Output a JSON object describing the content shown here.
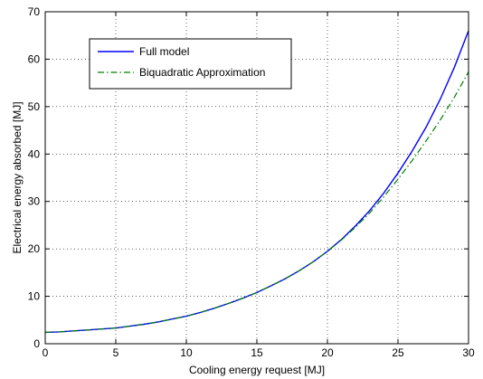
{
  "chart_data": {
    "type": "line",
    "title": "",
    "xlabel": "Cooling energy request [MJ]",
    "ylabel": "Electrical energy absorbed [MJ]",
    "xlim": [
      0,
      30
    ],
    "ylim": [
      0,
      70
    ],
    "xticks": [
      0,
      5,
      10,
      15,
      20,
      25,
      30
    ],
    "yticks": [
      0,
      10,
      20,
      30,
      40,
      50,
      60,
      70
    ],
    "grid": true,
    "legend_position": "top-left",
    "x": [
      0,
      1,
      2,
      3,
      4,
      5,
      6,
      7,
      8,
      9,
      10,
      11,
      12,
      13,
      14,
      15,
      16,
      17,
      18,
      19,
      20,
      21,
      22,
      23,
      24,
      25,
      26,
      27,
      28,
      29,
      30
    ],
    "series": [
      {
        "name": "Full model",
        "color": "#0000ff",
        "style": "solid",
        "values": [
          2.4,
          2.5,
          2.7,
          2.9,
          3.1,
          3.3,
          3.7,
          4.1,
          4.6,
          5.2,
          5.8,
          6.6,
          7.5,
          8.5,
          9.6,
          10.8,
          12.2,
          13.7,
          15.4,
          17.3,
          19.5,
          22.0,
          24.9,
          28.1,
          31.8,
          36.0,
          40.6,
          45.7,
          51.6,
          58.3,
          66.0
        ]
      },
      {
        "name": "Biquadratic Approximation",
        "color": "#008000",
        "style": "dashdot",
        "values": [
          2.4,
          2.5,
          2.7,
          2.9,
          3.1,
          3.3,
          3.7,
          4.1,
          4.6,
          5.2,
          5.8,
          6.6,
          7.5,
          8.5,
          9.6,
          10.8,
          12.2,
          13.7,
          15.4,
          17.3,
          19.5,
          21.9,
          24.6,
          27.6,
          31.0,
          34.7,
          38.6,
          42.8,
          47.2,
          52.0,
          57.3
        ]
      }
    ]
  }
}
